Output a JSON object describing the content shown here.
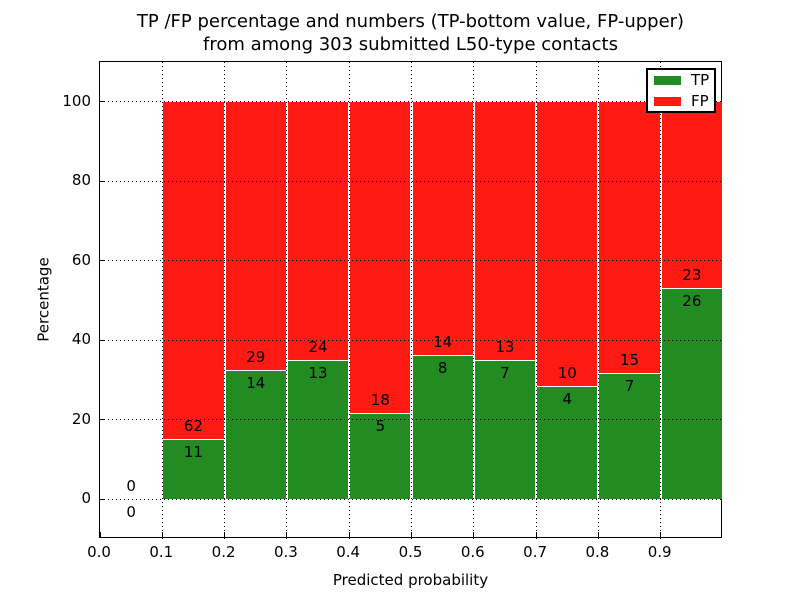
{
  "figure": {
    "title_line1": "TP /FP percentage and numbers (TP-bottom value, FP-upper)",
    "title_line2": "from among 303 submitted L50-type contacts",
    "xlabel": "Predicted probability",
    "ylabel": "Percentage"
  },
  "legend": {
    "position": "upper right",
    "items": [
      {
        "label": "TP",
        "color": "#228b22"
      },
      {
        "label": "FP",
        "color": "#ff1a14"
      }
    ]
  },
  "chart_data": {
    "type": "bar",
    "stacked": true,
    "title": "TP /FP percentage and numbers (TP-bottom value, FP-upper) from among 303 submitted L50-type contacts",
    "xlabel": "Predicted probability",
    "ylabel": "Percentage",
    "xlim": [
      0.0,
      1.0
    ],
    "ylim": [
      -10,
      110
    ],
    "xticks": [
      0.0,
      0.1,
      0.2,
      0.3,
      0.4,
      0.5,
      0.6,
      0.7,
      0.8,
      0.9
    ],
    "yticks": [
      0,
      20,
      40,
      60,
      80,
      100
    ],
    "grid": true,
    "bin_edges": [
      0.0,
      0.1,
      0.2,
      0.3,
      0.4,
      0.5,
      0.6,
      0.7,
      0.8,
      0.9,
      1.0
    ],
    "categories": [
      "0.0-0.1",
      "0.1-0.2",
      "0.2-0.3",
      "0.3-0.4",
      "0.4-0.5",
      "0.5-0.6",
      "0.6-0.7",
      "0.7-0.8",
      "0.8-0.9",
      "0.9-1.0"
    ],
    "series": [
      {
        "name": "TP",
        "color": "#228b22",
        "counts": [
          0,
          11,
          14,
          13,
          5,
          8,
          7,
          4,
          7,
          26
        ]
      },
      {
        "name": "FP",
        "color": "#ff1a14",
        "counts": [
          0,
          62,
          29,
          24,
          18,
          14,
          13,
          10,
          15,
          23
        ]
      }
    ],
    "bar_tp_percent": [
      null,
      15.1,
      32.6,
      35.1,
      21.7,
      36.4,
      35.0,
      28.6,
      31.8,
      53.1
    ],
    "total": 303
  }
}
